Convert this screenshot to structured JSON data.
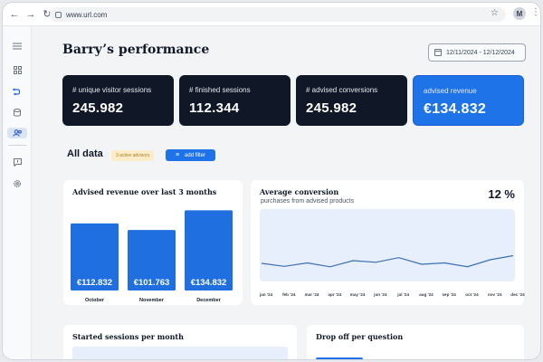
{
  "browser": {
    "url": "www.url.com",
    "avatar_initial": "M",
    "back_icon": "arrow-left-icon",
    "forward_icon": "arrow-right-icon",
    "reload_icon": "reload-icon"
  },
  "sidebar": {
    "items": [
      {
        "name": "menu",
        "icon": "menu-icon"
      },
      {
        "name": "dashboard",
        "icon": "grid-icon"
      },
      {
        "name": "flows",
        "icon": "flow-icon"
      },
      {
        "name": "database",
        "icon": "database-icon"
      },
      {
        "name": "users",
        "icon": "users-icon"
      },
      {
        "name": "feedback",
        "icon": "chat-icon"
      },
      {
        "name": "settings",
        "icon": "gear-icon"
      }
    ]
  },
  "page": {
    "title": "Barry’s performance",
    "date_range": "12/11/2024 - 12/12/2024"
  },
  "kpis": [
    {
      "label": "# unique visitor sessions",
      "value": "245.982"
    },
    {
      "label": "# finished sessions",
      "value": "112.344"
    },
    {
      "label": "# advised conversions",
      "value": "245.982"
    },
    {
      "label": "advised revenue",
      "value": "€134.832"
    }
  ],
  "filters": {
    "heading": "All data",
    "badge": "3 active advisors",
    "add_filter": "add filter"
  },
  "cards": {
    "revenue_title": "Advised revenue over last 3 months",
    "conversion_title": "Average conversion",
    "conversion_sub": "purchases from advised products",
    "conversion_pct": "12 %",
    "sessions_title": "Started sessions per month",
    "dropoff_title": "Drop off per question"
  },
  "chart_data": [
    {
      "type": "bar",
      "title": "Advised revenue over last 3 months",
      "categories": [
        "October",
        "November",
        "December"
      ],
      "values": [
        112832,
        101763,
        134832
      ],
      "data_labels": [
        "€112.832",
        "€101.763",
        "€134.832"
      ],
      "ylim": [
        0,
        140000
      ],
      "color": "#1f6fe0"
    },
    {
      "type": "area",
      "title": "Average conversion",
      "subtitle": "purchases from advised products",
      "categories": [
        "jan '24",
        "feb '24",
        "mar '24",
        "apr '24",
        "may '24",
        "jun '24",
        "jul '24",
        "aug '24",
        "sep '24",
        "oct '24",
        "nov '24",
        "dec '24"
      ],
      "values": [
        12,
        10,
        12.3,
        9.7,
        13.8,
        12.7,
        15.8,
        11.4,
        12.3,
        9.8,
        14.4,
        17.1
      ],
      "ylim": [
        0,
        48
      ],
      "line_color": "#3b6fb5",
      "fill_color": "#e6effb"
    }
  ]
}
